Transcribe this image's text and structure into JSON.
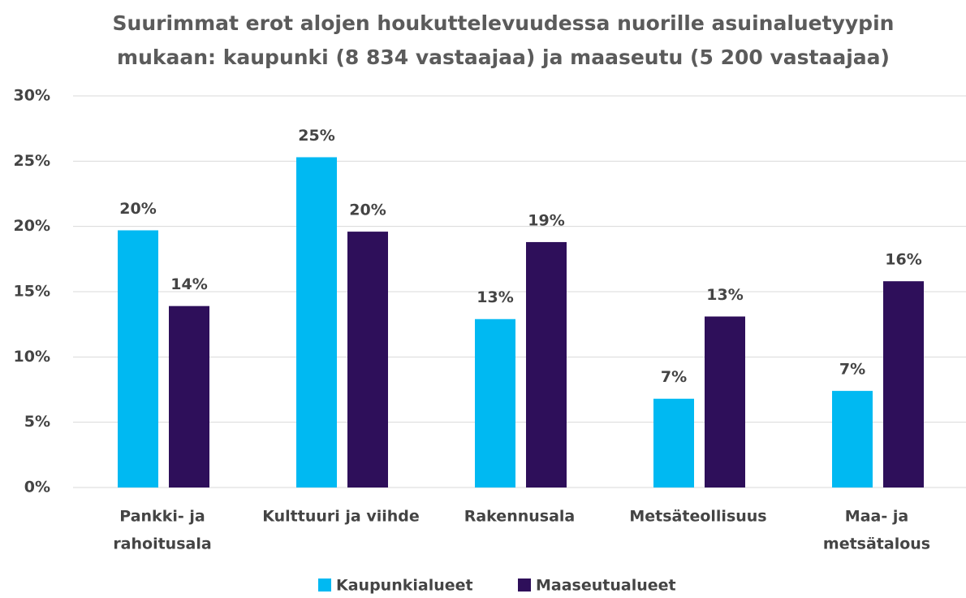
{
  "chart_data": {
    "type": "bar",
    "title": [
      "Suurimmat erot alojen houkuttelevuudessa nuorille asuinaluetyypin",
      "mukaan: kaupunki (8 834 vastaajaa) ja maaseutu (5 200 vastaajaa)"
    ],
    "categories": [
      [
        "Pankki- ja",
        "rahoitusala"
      ],
      [
        "Kulttuuri ja viihde"
      ],
      [
        "Rakennusala"
      ],
      [
        "Metsäteollisuus"
      ],
      [
        "Maa- ja",
        "metsätalous"
      ]
    ],
    "series": [
      {
        "name": "Kaupunkialueet",
        "color": "#00b9f2",
        "values": [
          19.7,
          25.3,
          12.9,
          6.8,
          7.4
        ],
        "value_labels": [
          "20%",
          "25%",
          "13%",
          "7%",
          "7%"
        ]
      },
      {
        "name": "Maaseutualueet",
        "color": "#2e0f5a",
        "values": [
          13.9,
          19.6,
          18.8,
          13.1,
          15.8
        ],
        "value_labels": [
          "14%",
          "20%",
          "19%",
          "13%",
          "16%"
        ]
      }
    ],
    "ylim": [
      0,
      30
    ],
    "yticks": [
      {
        "value": 0,
        "label": "0%"
      },
      {
        "value": 5,
        "label": "5%"
      },
      {
        "value": 10,
        "label": "10%"
      },
      {
        "value": 15,
        "label": "15%"
      },
      {
        "value": 20,
        "label": "20%"
      },
      {
        "value": 25,
        "label": "25%"
      },
      {
        "value": 30,
        "label": "30%"
      }
    ],
    "grid": true,
    "legend": "bottom"
  }
}
